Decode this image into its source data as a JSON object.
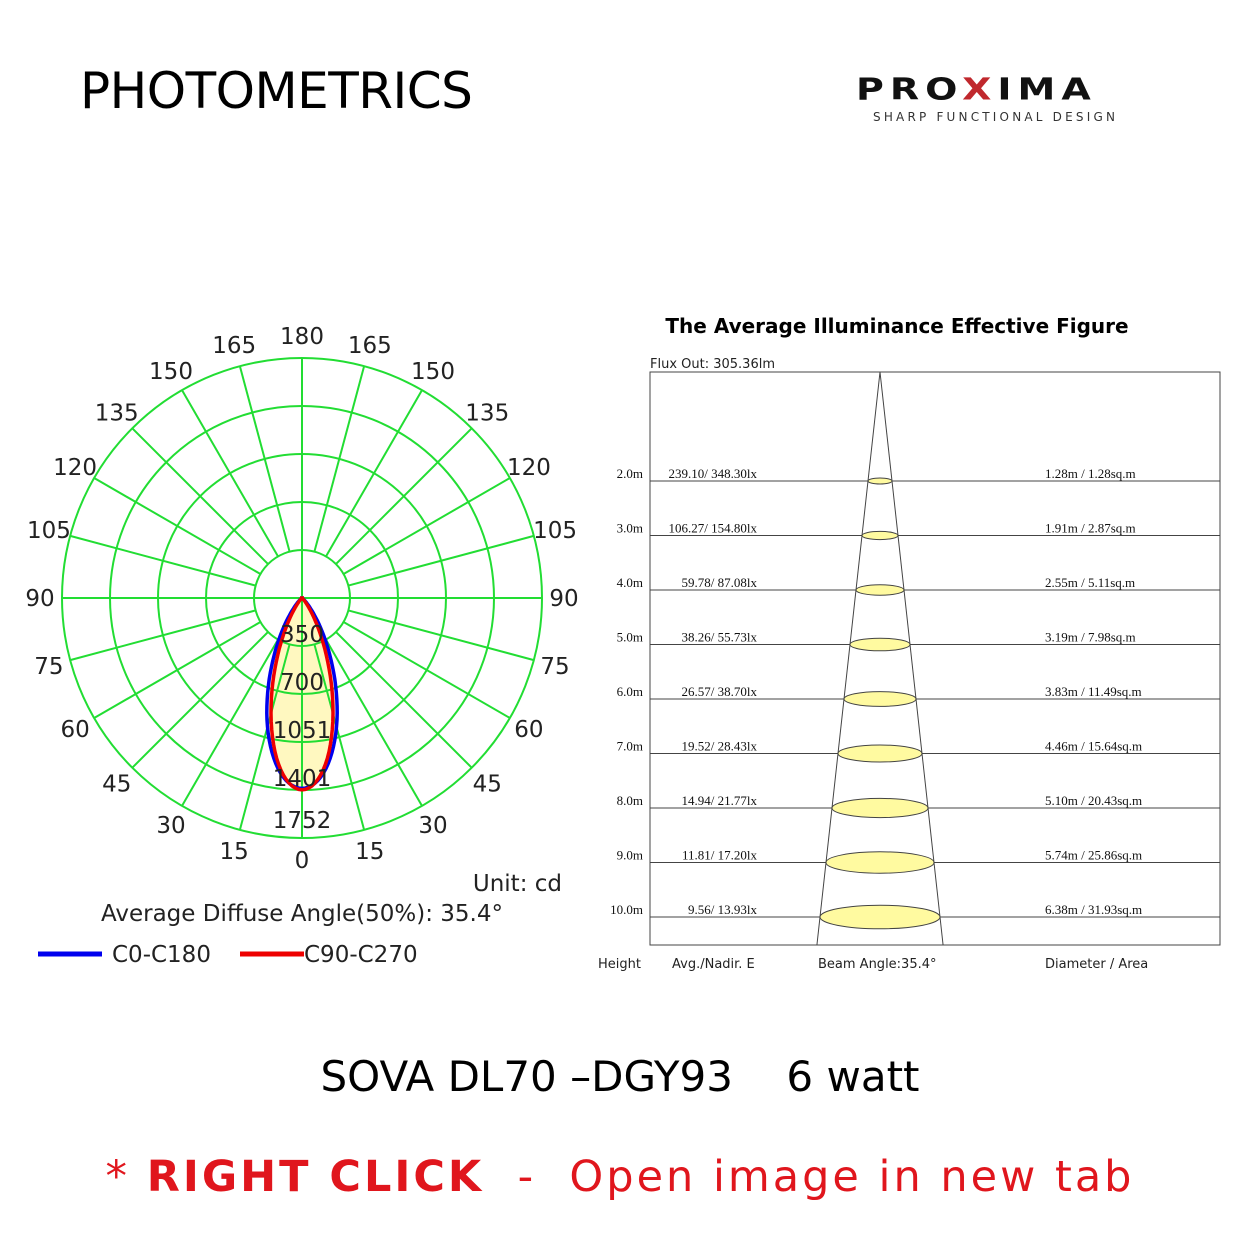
{
  "header": {
    "title": "PHOTOMETRICS"
  },
  "logo": {
    "brand_pre": "PRO",
    "brand_x": "X",
    "brand_post": "IMA",
    "tagline": "SHARP FUNCTIONAL DESIGN"
  },
  "chart_data": [
    {
      "type": "polar",
      "angle_labels_left": [
        "0",
        "15",
        "30",
        "45",
        "60",
        "75",
        "90",
        "105",
        "120",
        "135",
        "150",
        "165",
        "180"
      ],
      "angle_labels_right": [
        "15",
        "30",
        "45",
        "60",
        "75",
        "90",
        "105",
        "120",
        "135",
        "150",
        "165"
      ],
      "radial_ticks": [
        "350",
        "700",
        "1051",
        "1401",
        "1752"
      ],
      "rmax": 1752,
      "unit": "Unit: cd",
      "annotation": "Average Diffuse Angle(50%): 35.4°",
      "grid": true,
      "grid_color": "#22dd33",
      "fill_color": "#fff8c0",
      "series": [
        {
          "name": "C0-C180",
          "color": "#0000ee",
          "peak_cd": 1390,
          "half_angle_deg": 17.7
        },
        {
          "name": "C90-C270",
          "color": "#ee0000",
          "peak_cd": 1400,
          "half_angle_deg": 17.7
        }
      ]
    },
    {
      "type": "table",
      "title": "The Average Illuminance Effective Figure",
      "flux": "Flux Out: 305.36lm",
      "columns": [
        "Height",
        "Avg./Nadir. E",
        "Beam Angle:35.4°",
        "Diameter / Area"
      ],
      "rows": [
        {
          "height": "2.0m",
          "illum": "239.10/ 348.30lx",
          "size": "1.28m / 1.28sq.m",
          "diameter": 1.28
        },
        {
          "height": "3.0m",
          "illum": "106.27/ 154.80lx",
          "size": "1.91m / 2.87sq.m",
          "diameter": 1.91
        },
        {
          "height": "4.0m",
          "illum": "59.78/ 87.08lx",
          "size": "2.55m / 5.11sq.m",
          "diameter": 2.55
        },
        {
          "height": "5.0m",
          "illum": "38.26/ 55.73lx",
          "size": "3.19m / 7.98sq.m",
          "diameter": 3.19
        },
        {
          "height": "6.0m",
          "illum": "26.57/ 38.70lx",
          "size": "3.83m / 11.49sq.m",
          "diameter": 3.83
        },
        {
          "height": "7.0m",
          "illum": "19.52/ 28.43lx",
          "size": "4.46m / 15.64sq.m",
          "diameter": 4.46
        },
        {
          "height": "8.0m",
          "illum": "14.94/ 21.77lx",
          "size": "5.10m / 20.43sq.m",
          "diameter": 5.1
        },
        {
          "height": "9.0m",
          "illum": "11.81/ 17.20lx",
          "size": "5.74m / 25.86sq.m",
          "diameter": 5.74
        },
        {
          "height": "10.0m",
          "illum": "9.56/ 13.93lx",
          "size": "6.38m / 31.93sq.m",
          "diameter": 6.38
        }
      ],
      "ellipse_color": "#fffaa0"
    }
  ],
  "product": {
    "name": "SOVA DL70 –DGY93",
    "power": "6 watt"
  },
  "note": {
    "star": "* ",
    "bold": "RIGHT CLICK",
    "rest": "  -  Open image in new tab"
  }
}
